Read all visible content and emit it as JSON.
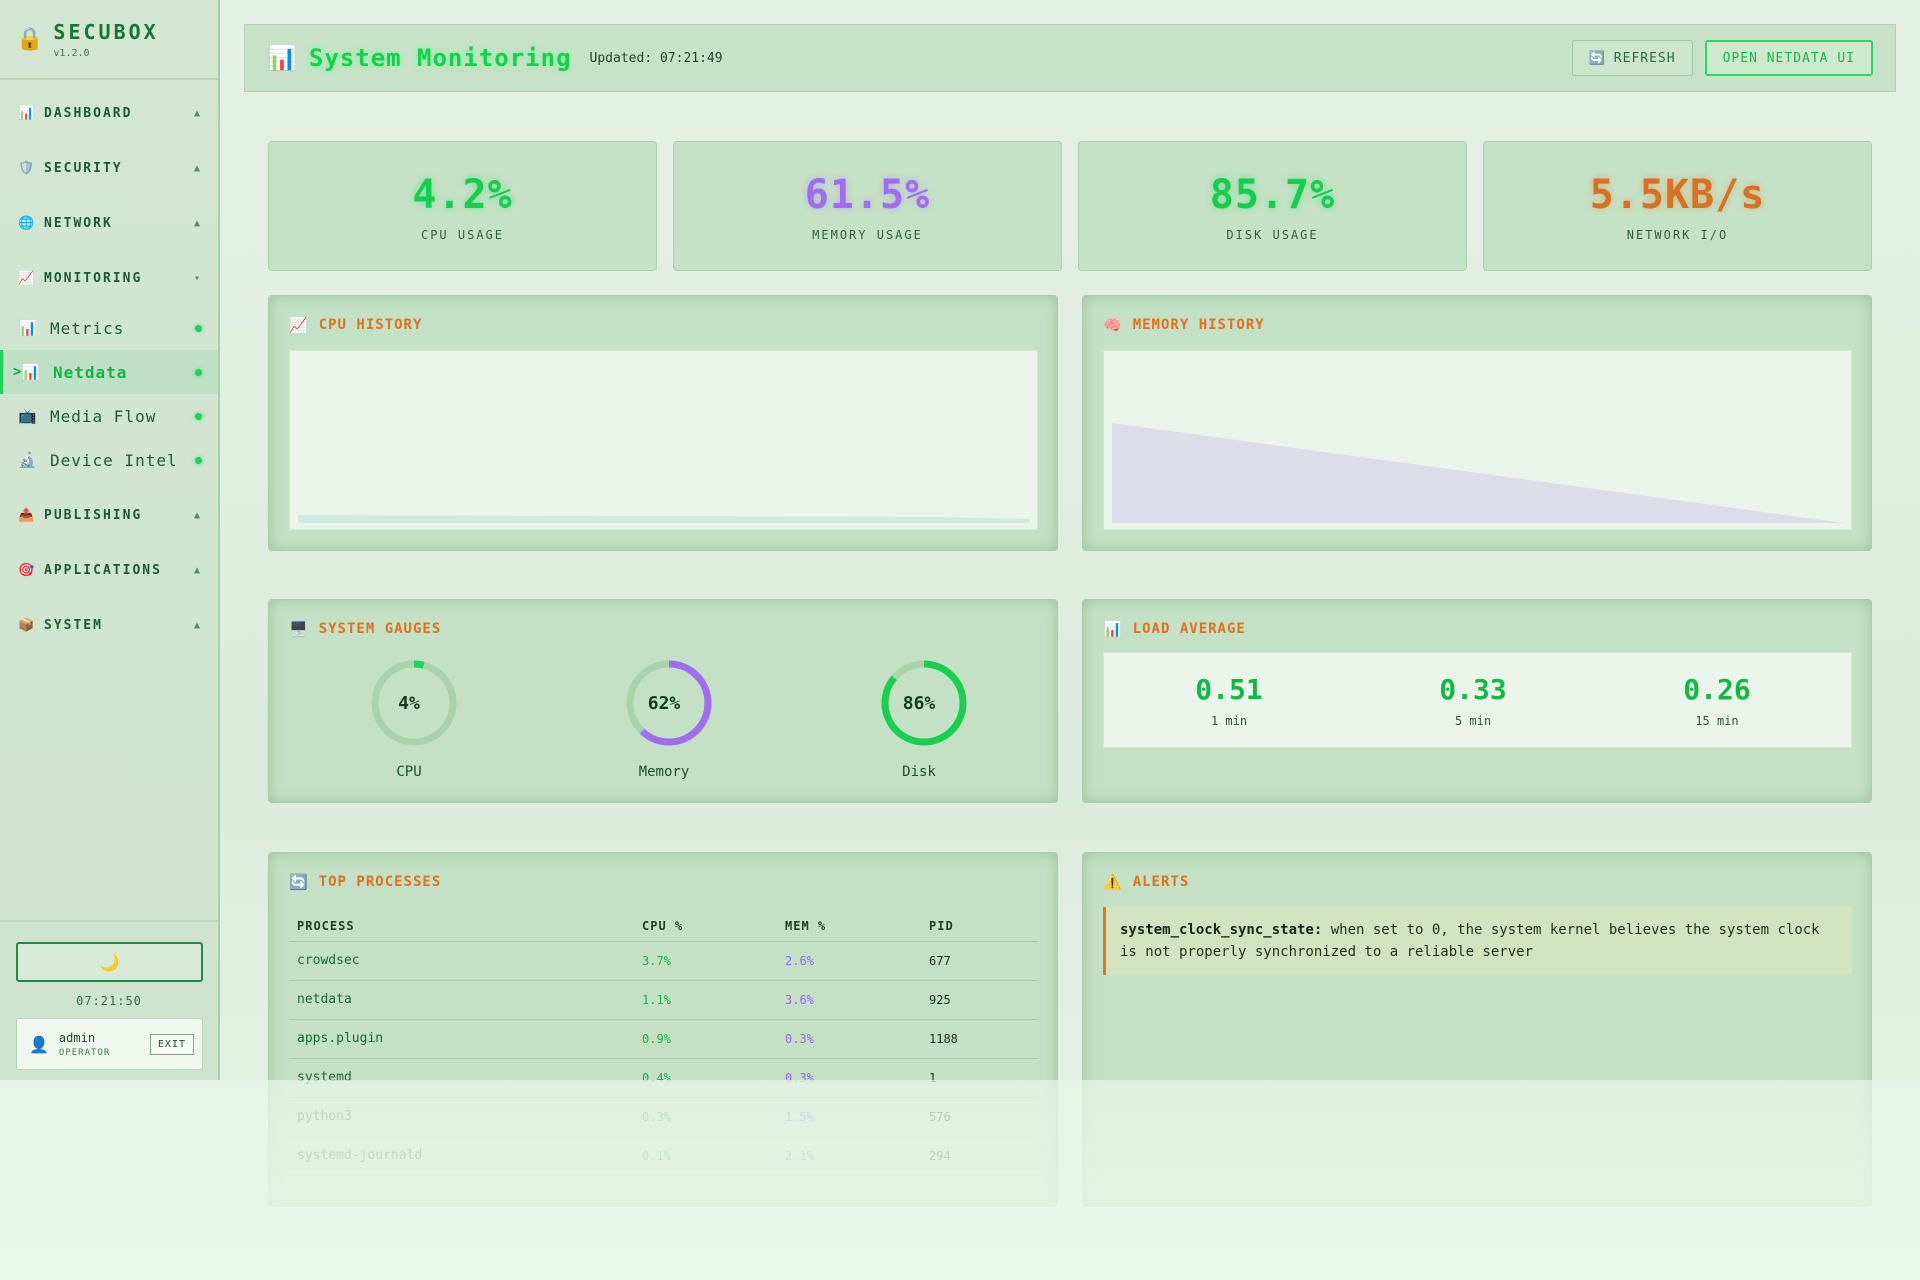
{
  "brand": {
    "name": "SECUBOX",
    "version": "v1.2.0"
  },
  "sidebar": {
    "groups_top": [
      {
        "icon": "📊",
        "label": "DASHBOARD",
        "caret": "▲"
      },
      {
        "icon": "🛡️",
        "label": "SECURITY",
        "caret": "▲"
      },
      {
        "icon": "🌐",
        "label": "NETWORK",
        "caret": "▲"
      },
      {
        "icon": "📈",
        "label": "MONITORING",
        "caret": "▾"
      }
    ],
    "items": [
      {
        "icon": "📊",
        "label": "Metrics"
      },
      {
        "icon": "📊",
        "label": "Netdata",
        "active_marker": ">"
      },
      {
        "icon": "📺",
        "label": "Media Flow"
      },
      {
        "icon": "🔬",
        "label": "Device Intel"
      }
    ],
    "groups_bottom": [
      {
        "icon": "📤",
        "label": "PUBLISHING",
        "caret": "▲"
      },
      {
        "icon": "🎯",
        "label": "APPLICATIONS",
        "caret": "▲"
      },
      {
        "icon": "📦",
        "label": "SYSTEM",
        "caret": "▲"
      }
    ],
    "theme_icon": "🌙",
    "clock": "07:21:50",
    "user": {
      "name": "admin",
      "role": "OPERATOR",
      "exit": "EXIT"
    }
  },
  "header": {
    "icon": "📊",
    "title": "System Monitoring",
    "updated": "Updated: 07:21:49",
    "refresh_icon": "🔄",
    "refresh_label": "REFRESH",
    "netdata_label": "OPEN NETDATA UI"
  },
  "stats": [
    {
      "value": "4.2%",
      "label": "CPU USAGE",
      "color": "#14cf4f"
    },
    {
      "value": "61.5%",
      "label": "MEMORY USAGE",
      "color": "#a06cf2"
    },
    {
      "value": "85.7%",
      "label": "DISK USAGE",
      "color": "#14cf4f"
    },
    {
      "value": "5.5KB/s",
      "label": "NETWORK I/O",
      "color": "#d97120"
    }
  ],
  "cpu_history": {
    "icon": "📈",
    "title": "CPU HISTORY"
  },
  "memory_history": {
    "icon": "🧠",
    "title": "MEMORY HISTORY"
  },
  "gauges": {
    "icon": "🖥️",
    "title": "SYSTEM GAUGES",
    "items": [
      {
        "pct_label": "4%",
        "label": "CPU",
        "fraction": 0.04,
        "color": "#1fd45c"
      },
      {
        "pct_label": "62%",
        "label": "Memory",
        "fraction": 0.62,
        "color": "#a06cf2"
      },
      {
        "pct_label": "86%",
        "label": "Disk",
        "fraction": 0.86,
        "color": "#18d050"
      }
    ]
  },
  "load": {
    "icon": "📊",
    "title": "LOAD AVERAGE",
    "items": [
      {
        "value": "0.51",
        "label": "1 min"
      },
      {
        "value": "0.33",
        "label": "5 min"
      },
      {
        "value": "0.26",
        "label": "15 min"
      }
    ]
  },
  "processes": {
    "icon": "🔄",
    "title": "TOP PROCESSES",
    "headers": [
      "PROCESS",
      "CPU %",
      "MEM %",
      "PID"
    ],
    "rows": [
      [
        "crowdsec",
        "3.7%",
        "2.6%",
        "677"
      ],
      [
        "netdata",
        "1.1%",
        "3.6%",
        "925"
      ],
      [
        "apps.plugin",
        "0.9%",
        "0.3%",
        "1188"
      ],
      [
        "systemd",
        "0.4%",
        "0.3%",
        "1"
      ],
      [
        "python3",
        "0.3%",
        "1.5%",
        "576"
      ],
      [
        "systemd-journald",
        "0.1%",
        "2.1%",
        "294"
      ]
    ]
  },
  "alerts": {
    "icon": "⚠️",
    "title": "ALERTS",
    "items": [
      {
        "name": "system_clock_sync_state:",
        "text": "when set to 0, the system kernel believes the system clock is not properly synchronized to a reliable server"
      }
    ]
  }
}
